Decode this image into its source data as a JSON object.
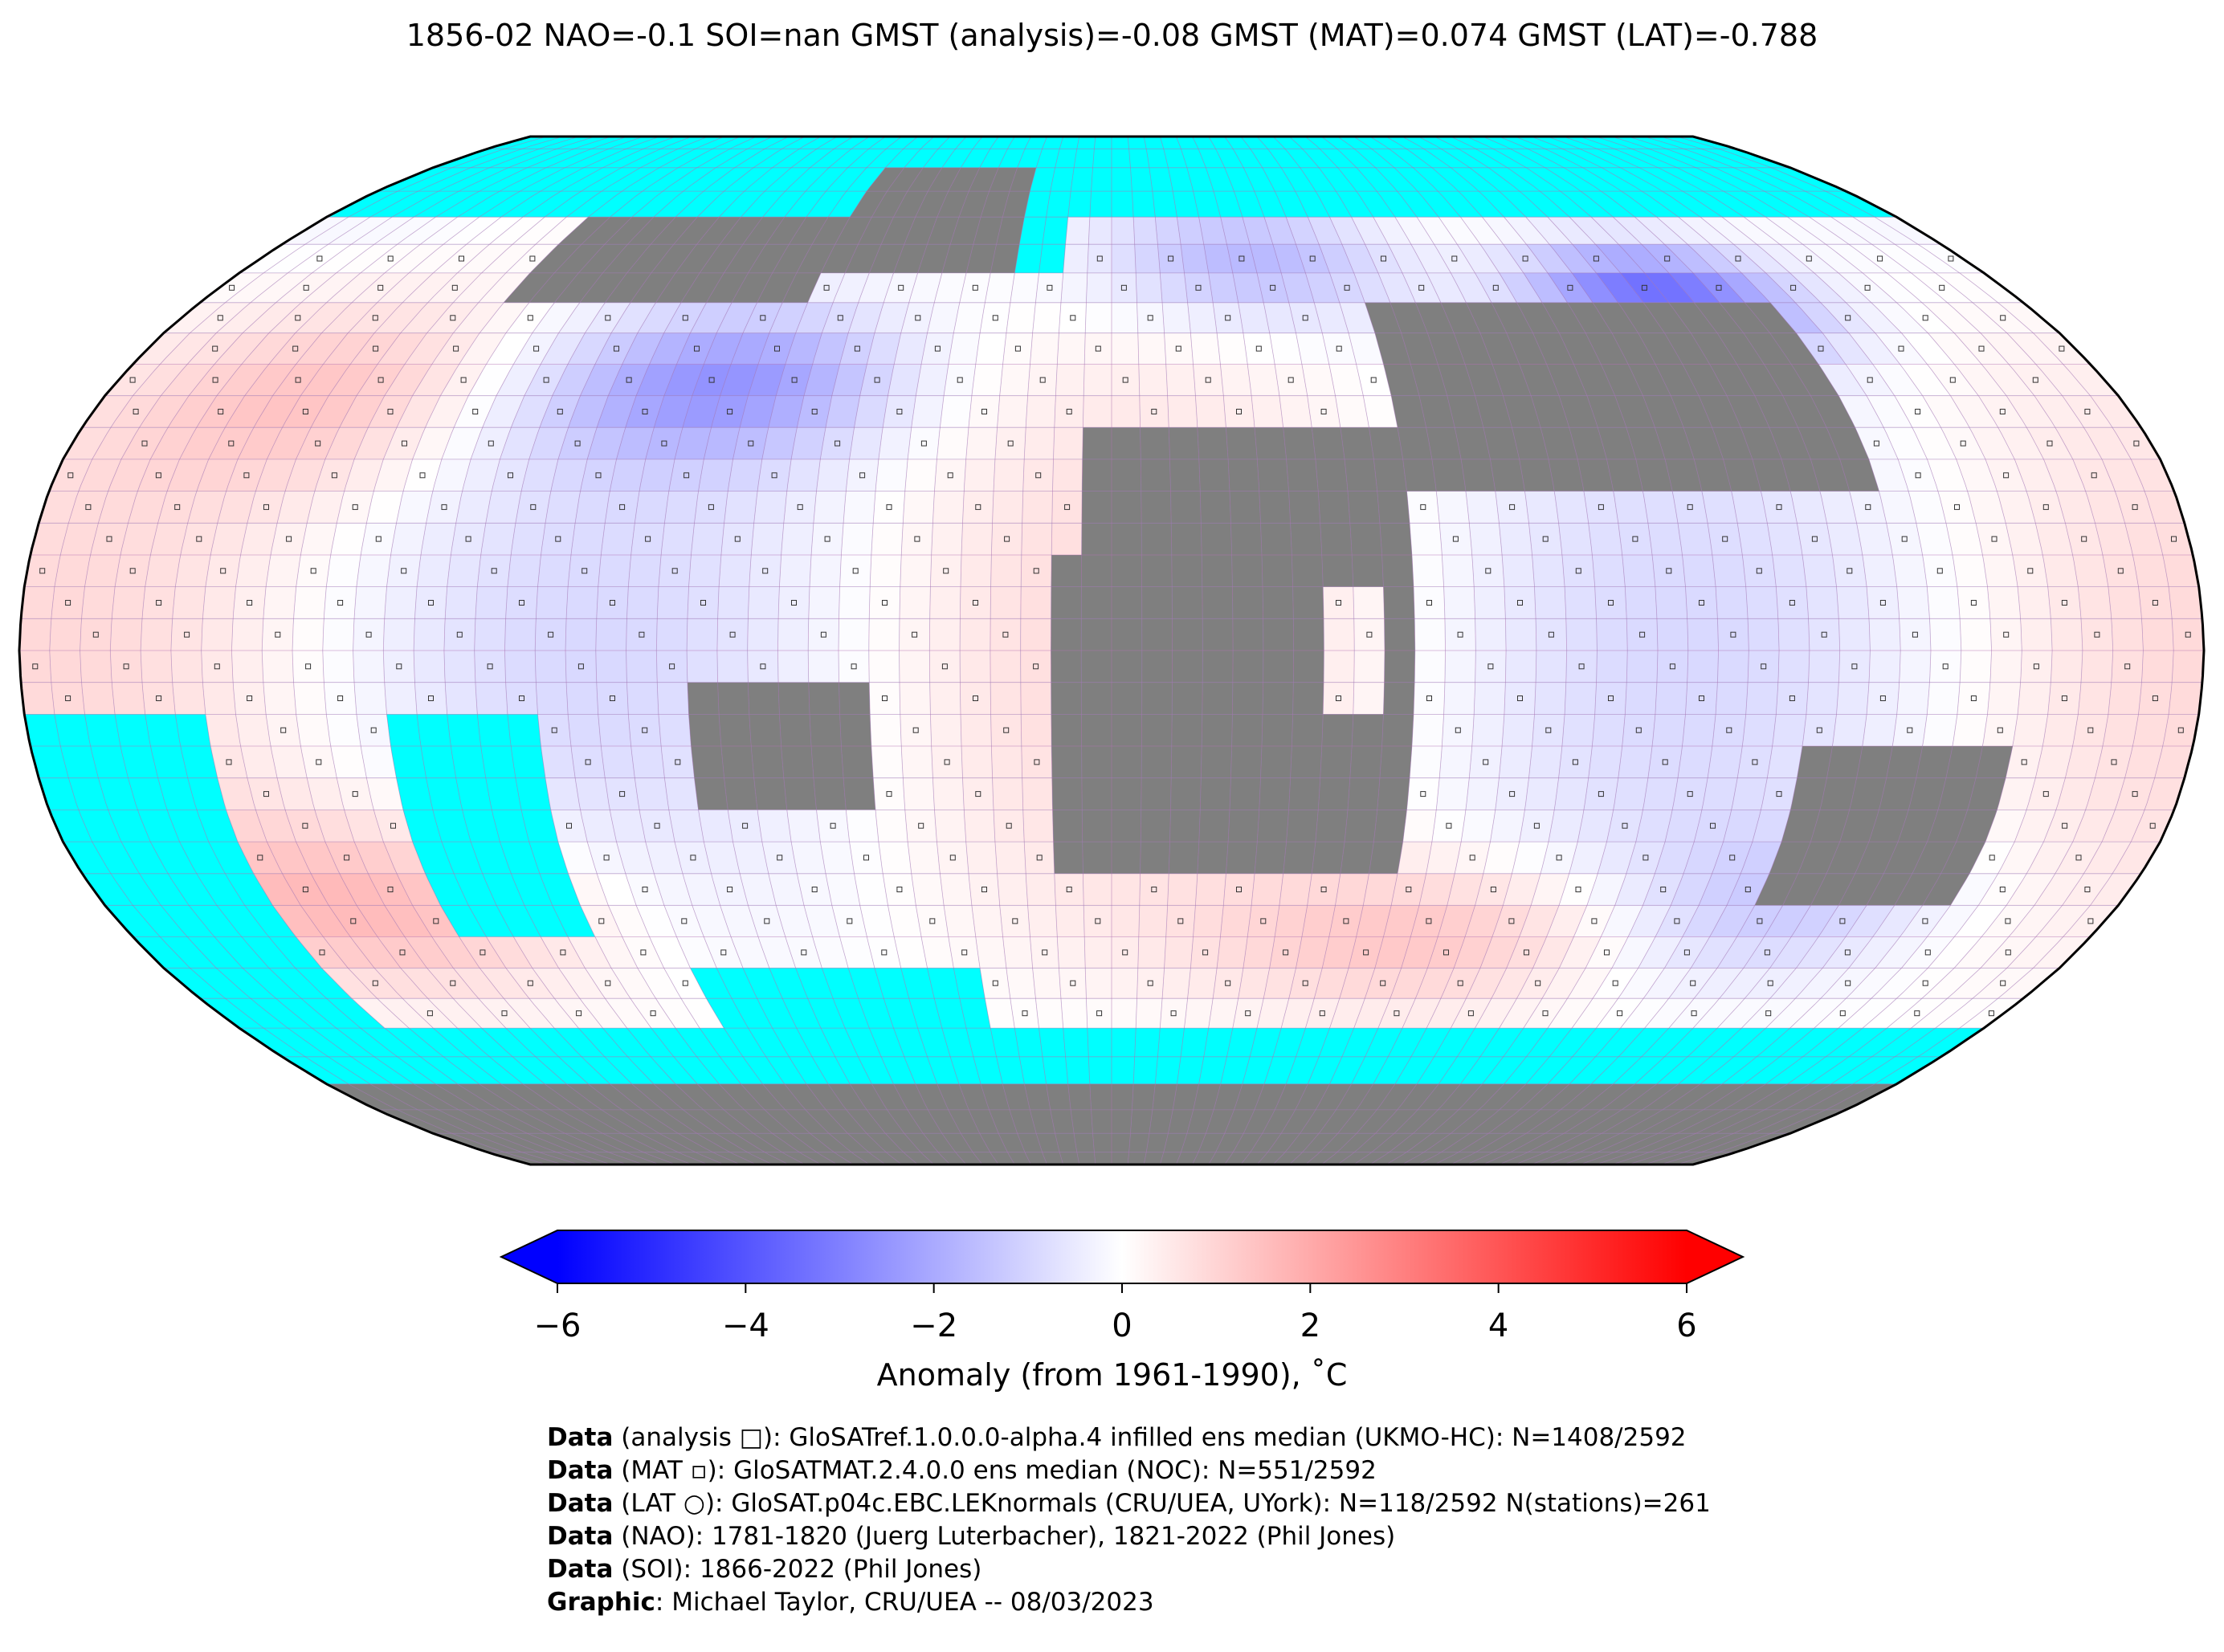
{
  "title": "1856-02 NAO=-0.1 SOI=nan GMST (analysis)=-0.08 GMST (MAT)=0.074 GMST (LAT)=-0.788",
  "colorbar": {
    "label": "Anomaly (from 1961-1990), ˚C",
    "ticks": [
      "−6",
      "−4",
      "−2",
      "0",
      "2",
      "4",
      "6"
    ],
    "tick_values": [
      -6,
      -4,
      -2,
      0,
      2,
      4,
      6
    ],
    "range": [
      -6,
      6
    ],
    "colormap": "bwr",
    "extend": "both"
  },
  "map": {
    "projection": "Robinson",
    "missing_data_ocean_color": "#00ffff",
    "missing_data_land_color": "#7f7f7f",
    "grid_line_color": "#b06fb0"
  },
  "credits": [
    {
      "bold": "Data",
      "text": " (analysis □): GloSATref.1.0.0.0-alpha.4 infilled ens median (UKMO-HC): N=1408/2592"
    },
    {
      "bold": "Data",
      "text": " (MAT ▫): GloSATMAT.2.4.0.0 ens median (NOC): N=551/2592"
    },
    {
      "bold": "Data",
      "text": " (LAT ○): GloSAT.p04c.EBC.LEKnormals (CRU/UEA, UYork): N=118/2592 N(stations)=261"
    },
    {
      "bold": "Data",
      "text": " (NAO): 1781-1820 (Juerg Luterbacher), 1821-2022 (Phil Jones)"
    },
    {
      "bold": "Data",
      "text": " (SOI): 1866-2022 (Phil Jones)"
    },
    {
      "bold": "Graphic",
      "text": ": Michael Taylor, CRU/UEA -- 08/03/2023"
    }
  ]
}
